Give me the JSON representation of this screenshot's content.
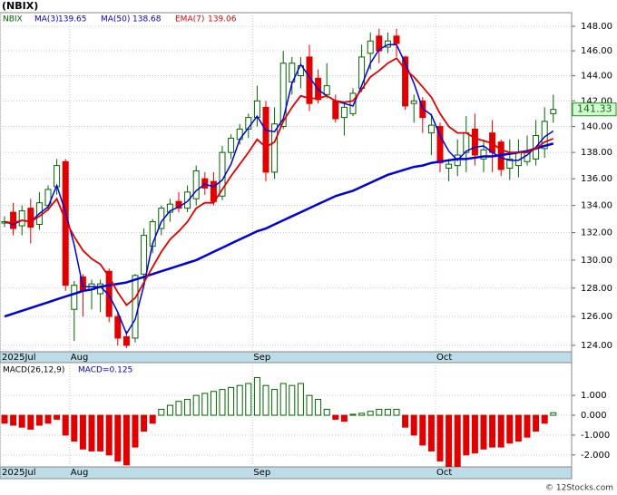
{
  "chart_data": [
    {
      "type": "candlestick",
      "title": "(NBIX)",
      "legend_label": "NBIX",
      "categories": [
        "2025Jul",
        null,
        null,
        null,
        null,
        null,
        null,
        null,
        "Aug",
        null,
        null,
        null,
        null,
        null,
        null,
        null,
        null,
        null,
        null,
        null,
        null,
        null,
        null,
        null,
        null,
        null,
        null,
        null,
        null,
        "Sep",
        null,
        null,
        null,
        null,
        null,
        null,
        null,
        null,
        null,
        null,
        null,
        null,
        null,
        null,
        null,
        null,
        null,
        null,
        null,
        null,
        "Oct",
        null,
        null,
        null,
        null,
        null,
        null,
        null,
        null,
        null,
        null,
        null,
        null,
        null
      ],
      "open": [
        132.7,
        133.5,
        132.5,
        133.8,
        132.6,
        134.0,
        135.4,
        137.3,
        126.5,
        128.8,
        127.9,
        127.6,
        129.2,
        126.0,
        124.6,
        124.5,
        129.0,
        131.0,
        132.3,
        133.5,
        134.3,
        133.8,
        134.5,
        136.0,
        135.8,
        134.7,
        138.0,
        139.0,
        139.8,
        140.7,
        141.5,
        136.5,
        140.0,
        143.5,
        144.0,
        145.5,
        143.8,
        142.5,
        142.0,
        140.7,
        141.0,
        143.0,
        145.8,
        147.2,
        146.3,
        147.2,
        145.5,
        141.8,
        142.0,
        139.5,
        140.0,
        136.8,
        137.0,
        138.0,
        139.8,
        137.5,
        139.5,
        138.8,
        136.8,
        137.0,
        137.3,
        137.5,
        138.3,
        141.0
      ],
      "high": [
        133.2,
        134.2,
        134.0,
        134.5,
        135.0,
        135.5,
        137.5,
        137.5,
        128.5,
        129.0,
        128.6,
        128.6,
        129.4,
        126.3,
        125.0,
        129.0,
        132.3,
        133.0,
        134.0,
        134.5,
        135.0,
        135.5,
        137.0,
        136.5,
        136.5,
        138.5,
        139.4,
        140.2,
        141.0,
        143.2,
        142.0,
        141.5,
        146.0,
        145.5,
        145.5,
        146.5,
        144.5,
        145.0,
        142.5,
        141.9,
        143.0,
        146.5,
        147.5,
        147.8,
        147.5,
        147.8,
        145.6,
        142.5,
        142.3,
        141.0,
        140.3,
        137.5,
        139.0,
        140.8,
        141.0,
        139.0,
        140.5,
        139.0,
        139.0,
        139.0,
        139.3,
        140.5,
        141.5,
        142.5
      ],
      "low": [
        132.4,
        131.8,
        131.8,
        131.2,
        132.2,
        133.6,
        134.8,
        127.8,
        124.3,
        126.0,
        126.5,
        126.3,
        125.6,
        124.0,
        123.8,
        124.2,
        128.5,
        130.5,
        131.8,
        132.8,
        133.5,
        133.5,
        134.0,
        134.8,
        134.0,
        134.4,
        137.5,
        138.6,
        139.1,
        140.0,
        135.8,
        136.0,
        139.8,
        142.5,
        143.0,
        141.2,
        141.8,
        142.2,
        140.3,
        139.3,
        140.8,
        142.7,
        144.5,
        145.0,
        145.8,
        145.5,
        141.3,
        140.3,
        139.5,
        137.8,
        136.5,
        135.8,
        136.2,
        136.5,
        137.0,
        136.5,
        136.5,
        136.2,
        135.9,
        136.1,
        137.0,
        137.0,
        137.6,
        140.3
      ],
      "close": [
        132.8,
        132.3,
        133.6,
        132.4,
        134.2,
        135.2,
        137.0,
        128.2,
        128.2,
        127.8,
        128.3,
        128.3,
        126.0,
        124.5,
        124.0,
        128.9,
        131.8,
        132.8,
        133.8,
        134.1,
        133.8,
        135.0,
        136.6,
        135.3,
        134.3,
        138.0,
        139.1,
        139.8,
        140.7,
        142.0,
        136.5,
        140.2,
        145.0,
        145.0,
        144.8,
        141.8,
        142.1,
        143.2,
        140.6,
        141.5,
        142.6,
        145.5,
        146.8,
        146.0,
        146.8,
        146.6,
        141.6,
        142.0,
        140.7,
        140.1,
        137.2,
        137.1,
        137.8,
        139.5,
        137.8,
        138.2,
        138.0,
        136.7,
        137.5,
        138.0,
        138.0,
        139.3,
        140.4,
        141.33
      ],
      "up_color": "#006400",
      "down_color": "#e00000",
      "series": [
        {
          "name": "MA(3)",
          "legend_value": 139.65,
          "color": "#0000dd",
          "width": 1.5,
          "values": [
            132.8,
            132.6,
            132.9,
            132.8,
            133.4,
            133.9,
            135.5,
            133.5,
            131.1,
            128.1,
            128.1,
            128.1,
            127.5,
            126.3,
            124.8,
            125.8,
            128.2,
            131.2,
            132.8,
            133.6,
            133.9,
            134.3,
            135.1,
            135.6,
            135.4,
            135.9,
            137.1,
            139.0,
            139.9,
            140.8,
            139.7,
            139.6,
            140.6,
            143.4,
            144.9,
            143.9,
            142.9,
            142.4,
            142.0,
            141.8,
            141.6,
            143.2,
            145.0,
            146.1,
            146.5,
            146.5,
            145.0,
            143.4,
            141.4,
            140.9,
            139.3,
            138.1,
            137.4,
            138.1,
            138.4,
            138.5,
            138.0,
            137.6,
            137.4,
            137.4,
            137.8,
            138.4,
            139.2,
            139.65
          ]
        },
        {
          "name": "MA(50)",
          "legend_value": 138.68,
          "color": "#0000dd",
          "width": 2.5,
          "values": [
            126.0,
            126.2,
            126.4,
            126.6,
            126.8,
            127.0,
            127.2,
            127.4,
            127.6,
            127.8,
            127.9,
            128.1,
            128.2,
            128.3,
            128.4,
            128.6,
            128.8,
            129.0,
            129.2,
            129.4,
            129.6,
            129.8,
            130.0,
            130.3,
            130.6,
            130.9,
            131.2,
            131.5,
            131.8,
            132.1,
            132.3,
            132.6,
            132.9,
            133.2,
            133.5,
            133.8,
            134.1,
            134.4,
            134.7,
            134.9,
            135.1,
            135.4,
            135.7,
            136.0,
            136.3,
            136.5,
            136.7,
            136.9,
            137.0,
            137.2,
            137.3,
            137.4,
            137.5,
            137.5,
            137.6,
            137.7,
            137.7,
            137.8,
            137.9,
            138.0,
            138.1,
            138.3,
            138.5,
            138.68
          ]
        },
        {
          "name": "EMA(7)",
          "legend_value": 139.06,
          "color": "#e00000",
          "width": 1.8,
          "values": [
            132.8,
            132.7,
            132.9,
            132.8,
            133.2,
            133.7,
            134.5,
            132.9,
            131.7,
            130.7,
            130.1,
            129.7,
            128.8,
            127.7,
            126.8,
            127.3,
            128.4,
            129.5,
            130.6,
            131.5,
            132.1,
            132.8,
            133.8,
            134.2,
            134.2,
            135.2,
            136.2,
            137.1,
            138.0,
            139.0,
            138.4,
            138.8,
            140.4,
            141.5,
            142.4,
            142.2,
            142.2,
            142.4,
            142.0,
            141.9,
            142.0,
            142.9,
            143.9,
            144.4,
            145.0,
            145.4,
            144.5,
            143.9,
            143.1,
            142.3,
            141.0,
            140.0,
            139.5,
            139.5,
            139.1,
            138.9,
            138.7,
            138.2,
            138.0,
            138.0,
            138.0,
            138.3,
            138.8,
            139.06
          ]
        }
      ],
      "ylim": [
        123.56,
        149.12
      ],
      "log_scale": true,
      "grid": true,
      "yticks": [
        {
          "value": 124,
          "label": "124.00"
        },
        {
          "value": 126,
          "label": "126.00"
        },
        {
          "value": 128,
          "label": "128.00"
        },
        {
          "value": 130,
          "label": "130.00"
        },
        {
          "value": 132,
          "label": "132.00"
        },
        {
          "value": 134,
          "label": "134.00"
        },
        {
          "value": 136,
          "label": "136.00"
        },
        {
          "value": 138,
          "label": "138.00"
        },
        {
          "value": 140,
          "label": "140.00"
        },
        {
          "value": 142,
          "label": "142.00"
        },
        {
          "value": 144,
          "label": "144.00"
        },
        {
          "value": 146,
          "label": "146.00"
        },
        {
          "value": 148,
          "label": "148.00"
        }
      ]
    },
    {
      "type": "bar",
      "title": "MACD(26,12,9)",
      "subtitle": "MACD=0.125",
      "values": [
        -0.4,
        -0.5,
        -0.6,
        -0.7,
        -0.5,
        -0.4,
        -0.2,
        -1.0,
        -1.3,
        -1.7,
        -1.8,
        -1.8,
        -2.0,
        -2.3,
        -2.5,
        -1.6,
        -0.8,
        -0.4,
        0.3,
        0.5,
        0.7,
        0.8,
        1.0,
        1.1,
        1.2,
        1.3,
        1.4,
        1.5,
        1.6,
        1.9,
        1.5,
        1.3,
        1.6,
        1.5,
        1.6,
        1.0,
        0.8,
        0.3,
        -0.2,
        -0.3,
        0.05,
        0.1,
        0.2,
        0.3,
        0.3,
        0.3,
        -0.6,
        -1.0,
        -1.5,
        -1.8,
        -2.3,
        -2.6,
        -2.6,
        -2.0,
        -1.9,
        -1.7,
        -1.6,
        -1.6,
        -1.4,
        -1.3,
        -1.1,
        -0.8,
        -0.4,
        0.125
      ],
      "up_color": "#006400",
      "down_color": "#e00000",
      "ylim": [
        -2.6,
        2.65
      ],
      "grid": true,
      "yticks": [
        {
          "value": 1,
          "label": "1.000"
        },
        {
          "value": 0,
          "label": "0.000"
        },
        {
          "value": -1,
          "label": "-1.000"
        },
        {
          "value": -2,
          "label": "-2.000"
        }
      ]
    }
  ],
  "footer": "© 12Stocks.com"
}
